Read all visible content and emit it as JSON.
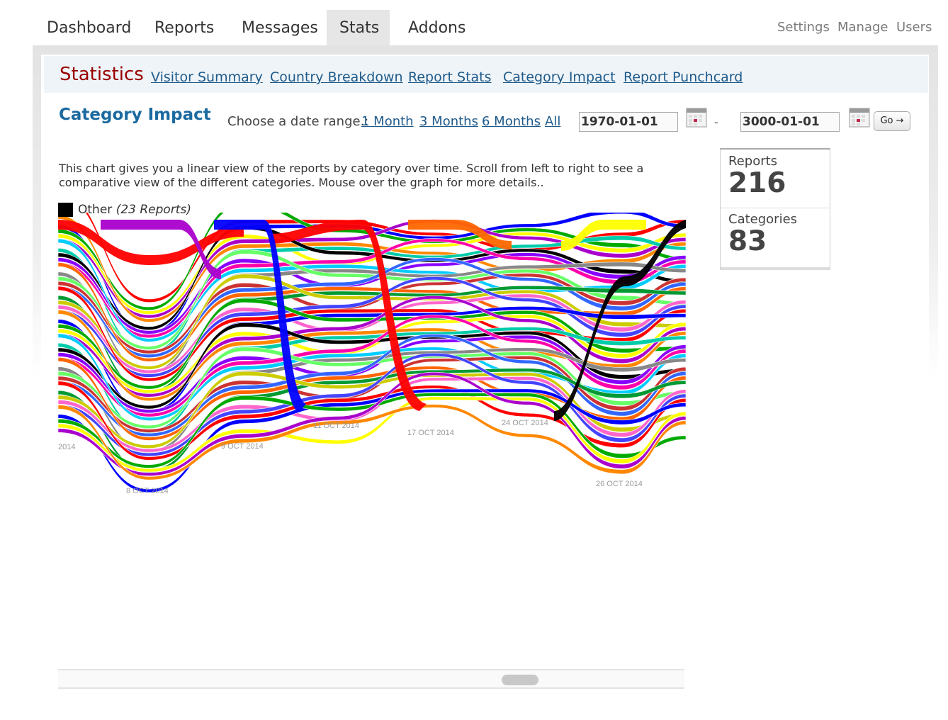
{
  "nav": {
    "tabs": [
      {
        "label": "Dashboard",
        "active": false
      },
      {
        "label": "Reports",
        "active": false
      },
      {
        "label": "Messages",
        "active": false
      },
      {
        "label": "Stats",
        "active": true
      },
      {
        "label": "Addons",
        "active": false
      }
    ],
    "right_links": [
      "Settings",
      "Manage",
      "Users"
    ]
  },
  "subnav": {
    "title": "Statistics",
    "links": [
      "Visitor Summary",
      "Country Breakdown",
      "Report Stats",
      "Category Impact",
      "Report Punchcard"
    ]
  },
  "section": {
    "title": "Category Impact",
    "range_label": "Choose a date range.:",
    "range_links": [
      "1 Month",
      "3 Months",
      "6 Months",
      "All"
    ],
    "date_from": "1970-01-01",
    "date_separator": "-",
    "date_to": "3000-01-01",
    "go_label": "Go →"
  },
  "description": "This chart gives you a linear view of the reports by category over time. Scroll from left to right to see a comparative view of the different categories. Mouse over the graph for more details..",
  "legend": {
    "label": "Other",
    "count_text": "(23 Reports)",
    "color": "#000000"
  },
  "stats": [
    {
      "label": "Reports",
      "value": "216"
    },
    {
      "label": "Categories",
      "value": "83"
    }
  ],
  "chart_data": {
    "type": "area",
    "subtype": "streamgraph",
    "x_tick_labels": [
      "2014",
      "8 OCT 2014",
      "9 OCT 2014",
      "11 OCT 2014",
      "17 OCT 2014",
      "24 OCT 2014",
      "26 OCT 2014"
    ],
    "legend_visible_entry": "Other",
    "legend_visible_count": 23,
    "palette": [
      "#ff0000",
      "#0000ff",
      "#00aa00",
      "#ffff00",
      "#aa00cc",
      "#ff8800",
      "#00ccaa",
      "#000000",
      "#8800ff",
      "#ff00aa",
      "#00ccff",
      "#888888",
      "#66ff66",
      "#cc3333",
      "#3366ff",
      "#ff6600",
      "#009933",
      "#cccc00",
      "#ff66cc",
      "#4444ff"
    ]
  }
}
